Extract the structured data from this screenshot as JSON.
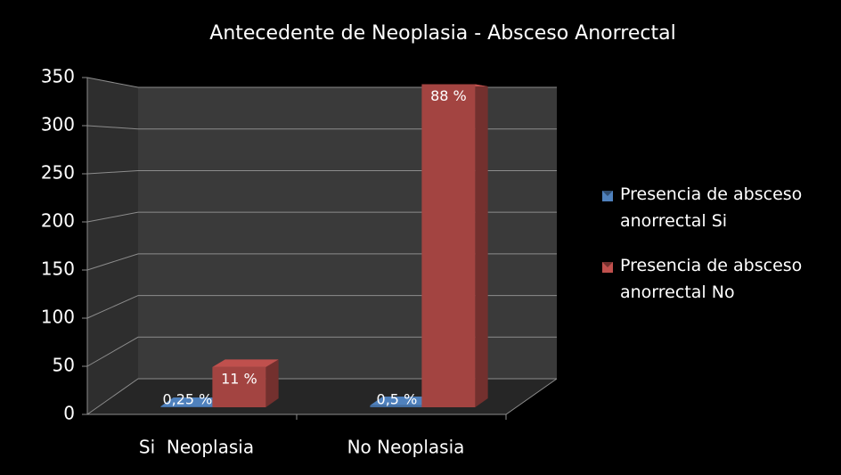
{
  "chart_data": {
    "type": "bar3d",
    "title": "Antecedente de Neoplasia - Absceso Anorrectal",
    "categories": [
      "Si  Neoplasia",
      "No Neoplasia"
    ],
    "series": [
      {
        "name": "Presencia de absceso anorrectal Si",
        "color": "#4f81bd",
        "values": [
          1,
          2
        ],
        "value_labels": [
          "0,25 %",
          "0,5 %"
        ]
      },
      {
        "name": "Presencia de absceso anorrectal No",
        "color": "#c0504d",
        "values": [
          43,
          345
        ],
        "value_labels": [
          "11 %",
          "88 %"
        ]
      }
    ],
    "ylim": [
      0,
      350
    ],
    "yticks": [
      0,
      50,
      100,
      150,
      200,
      250,
      300,
      350
    ],
    "grid": true,
    "legend": "right"
  }
}
